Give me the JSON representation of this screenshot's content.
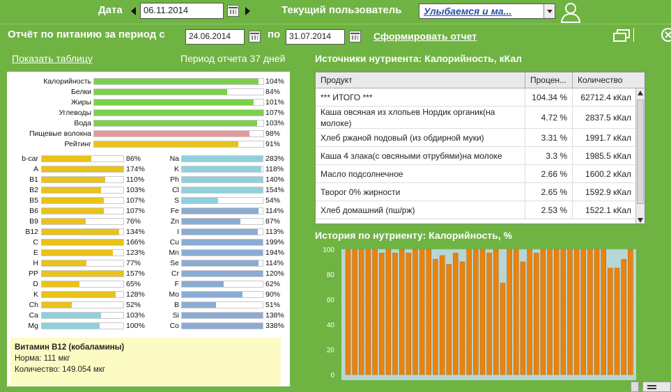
{
  "toolbar": {
    "date_label": "Дата",
    "date_value": "06.11.2014",
    "user_label": "Текущий пользователь",
    "user_value": "Улыбаемся и ма..."
  },
  "report": {
    "title": "Отчёт по питанию за период с",
    "date_from": "24.06.2014",
    "to_label": "по",
    "date_to": "31.07.2014",
    "generate": "Сформировать отчет"
  },
  "left": {
    "show_table": "Показать таблицу",
    "period": "Период отчета 37 дней"
  },
  "macros": [
    {
      "name": "Калорийность",
      "pct": "104%",
      "level": 104,
      "color": "#7dd04a"
    },
    {
      "name": "Белки",
      "pct": "84%",
      "level": 84,
      "color": "#7dd04a"
    },
    {
      "name": "Жиры",
      "pct": "101%",
      "level": 101,
      "color": "#7dd04a"
    },
    {
      "name": "Углеводы",
      "pct": "107%",
      "level": 107,
      "color": "#7dd04a"
    },
    {
      "name": "Вода",
      "pct": "103%",
      "level": 103,
      "color": "#7dd04a"
    },
    {
      "name": "Пищевые волокна",
      "pct": "98%",
      "level": 98,
      "color": "#e49a9a"
    },
    {
      "name": "Рейтинг",
      "pct": "91%",
      "level": 91,
      "color": "#e9c21a"
    }
  ],
  "vitamins": [
    {
      "name": "b-car",
      "pct": "86%",
      "level": 86
    },
    {
      "name": "A",
      "pct": "174%",
      "level": 174
    },
    {
      "name": "B1",
      "pct": "110%",
      "level": 110
    },
    {
      "name": "B2",
      "pct": "103%",
      "level": 103
    },
    {
      "name": "B5",
      "pct": "107%",
      "level": 107
    },
    {
      "name": "B6",
      "pct": "107%",
      "level": 107
    },
    {
      "name": "B9",
      "pct": "76%",
      "level": 76
    },
    {
      "name": "B12",
      "pct": "134%",
      "level": 134
    },
    {
      "name": "C",
      "pct": "166%",
      "level": 166
    },
    {
      "name": "E",
      "pct": "123%",
      "level": 123
    },
    {
      "name": "H",
      "pct": "77%",
      "level": 77
    },
    {
      "name": "PP",
      "pct": "157%",
      "level": 157
    },
    {
      "name": "D",
      "pct": "65%",
      "level": 65
    },
    {
      "name": "K",
      "pct": "128%",
      "level": 128
    },
    {
      "name": "Ch",
      "pct": "52%",
      "level": 52
    },
    {
      "name": "Ca",
      "pct": "103%",
      "level": 103
    },
    {
      "name": "Mg",
      "pct": "100%",
      "level": 100
    }
  ],
  "vitamin_colors": [
    "#e9c21a",
    "#e9c21a",
    "#e9c21a",
    "#e9c21a",
    "#e9c21a",
    "#e9c21a",
    "#e9c21a",
    "#e9c21a",
    "#e9c21a",
    "#e9c21a",
    "#e9c21a",
    "#e9c21a",
    "#e9c21a",
    "#e9c21a",
    "#e9c21a",
    "#8fd0dd",
    "#8fd0dd"
  ],
  "minerals": [
    {
      "name": "Na",
      "pct": "283%",
      "level": 283,
      "color": "#8fd0dd"
    },
    {
      "name": "K",
      "pct": "118%",
      "level": 118,
      "color": "#8fd0dd"
    },
    {
      "name": "Ph",
      "pct": "140%",
      "level": 140,
      "color": "#8fd0dd"
    },
    {
      "name": "Cl",
      "pct": "154%",
      "level": 154,
      "color": "#8fd0dd"
    },
    {
      "name": "S",
      "pct": "54%",
      "level": 54,
      "color": "#8fd0dd"
    },
    {
      "name": "Fe",
      "pct": "114%",
      "level": 114,
      "color": "#8aabd3"
    },
    {
      "name": "Zn",
      "pct": "87%",
      "level": 87,
      "color": "#8aabd3"
    },
    {
      "name": "I",
      "pct": "113%",
      "level": 113,
      "color": "#8aabd3"
    },
    {
      "name": "Cu",
      "pct": "199%",
      "level": 199,
      "color": "#8aabd3"
    },
    {
      "name": "Mn",
      "pct": "194%",
      "level": 194,
      "color": "#8aabd3"
    },
    {
      "name": "Se",
      "pct": "114%",
      "level": 114,
      "color": "#8aabd3"
    },
    {
      "name": "Cr",
      "pct": "120%",
      "level": 120,
      "color": "#8aabd3"
    },
    {
      "name": "F",
      "pct": "62%",
      "level": 62,
      "color": "#8aabd3"
    },
    {
      "name": "Mo",
      "pct": "90%",
      "level": 90,
      "color": "#8aabd3"
    },
    {
      "name": "B",
      "pct": "51%",
      "level": 51,
      "color": "#8aabd3"
    },
    {
      "name": "Si",
      "pct": "138%",
      "level": 138,
      "color": "#8aabd3"
    },
    {
      "name": "Co",
      "pct": "338%",
      "level": 338,
      "color": "#8aabd3"
    }
  ],
  "info": {
    "title": "Витамин В12 (кобаламины)",
    "norm": "Норма: 111 мкг",
    "amount": "Количество: 149.054 мкг"
  },
  "sources": {
    "title": "Источники нутриента: Калорийность, кКал",
    "headers": [
      "Продукт",
      "Процен...",
      "Количество"
    ],
    "rows": [
      [
        "*** ИТОГО ***",
        "104.34 %",
        "62712.4 кКал"
      ],
      [
        "Каша овсяная из хлопьев Нордик органик(на молоке)",
        "4.72 %",
        "2837.5 кКал"
      ],
      [
        "Хлеб ржаной подовый  (из обдирной муки)",
        "3.31 %",
        "1991.7 кКал"
      ],
      [
        "Каша 4 злака(с овсяными отрубями)на молоке",
        "3.3 %",
        "1985.5 кКал"
      ],
      [
        "Масло подсолнечное",
        "2.66 %",
        "1600.2 кКал"
      ],
      [
        "Творог 0% жирности",
        "2.65 %",
        "1592.9 кКал"
      ],
      [
        "Хлеб домашний (пш/рж)",
        "2.53 %",
        "1522.1 кКал"
      ]
    ]
  },
  "history": {
    "title": "История по нутриенту: Калорийность, %"
  },
  "chart_data": {
    "type": "bar",
    "ylim": [
      0,
      100
    ],
    "yticks": [
      "0",
      "20",
      "40",
      "60",
      "80",
      "100"
    ],
    "color": "#e8830f",
    "values": [
      100,
      100,
      100,
      100,
      100,
      97,
      100,
      97,
      100,
      97,
      100,
      100,
      100,
      92,
      95,
      88,
      97,
      90,
      100,
      100,
      100,
      97,
      100,
      73,
      100,
      100,
      90,
      100,
      97,
      100,
      100,
      100,
      100,
      100,
      100,
      100,
      100,
      100,
      100,
      85,
      85,
      92,
      100
    ]
  }
}
